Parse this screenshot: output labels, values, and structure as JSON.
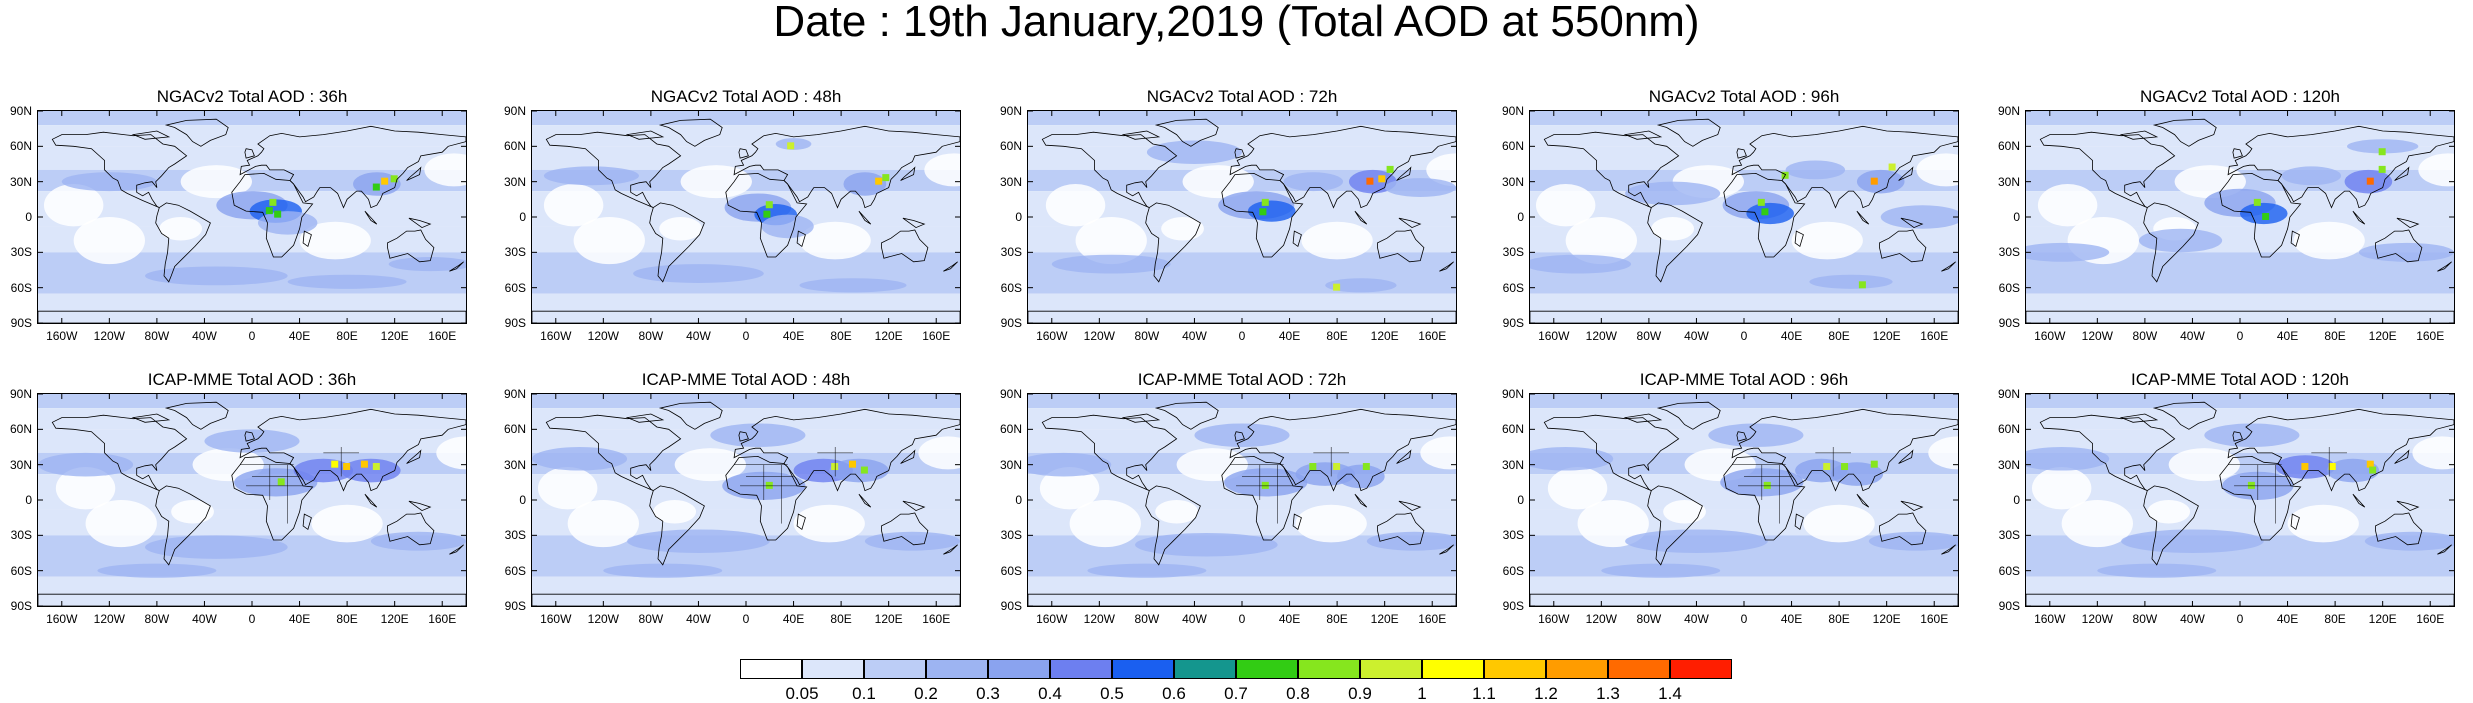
{
  "title": "Date : 19th January,2019 (Total AOD at 550nm)",
  "panels": [
    {
      "title": "NGACv2 Total AOD : 36h",
      "model": "NGACv2",
      "lead_hours": 36
    },
    {
      "title": "NGACv2 Total AOD : 48h",
      "model": "NGACv2",
      "lead_hours": 48
    },
    {
      "title": "NGACv2 Total AOD : 72h",
      "model": "NGACv2",
      "lead_hours": 72
    },
    {
      "title": "NGACv2 Total AOD : 96h",
      "model": "NGACv2",
      "lead_hours": 96
    },
    {
      "title": "NGACv2 Total AOD : 120h",
      "model": "NGACv2",
      "lead_hours": 120
    },
    {
      "title": "ICAP-MME Total AOD : 36h",
      "model": "ICAP-MME",
      "lead_hours": 36
    },
    {
      "title": "ICAP-MME Total AOD : 48h",
      "model": "ICAP-MME",
      "lead_hours": 48
    },
    {
      "title": "ICAP-MME Total AOD : 72h",
      "model": "ICAP-MME",
      "lead_hours": 72
    },
    {
      "title": "ICAP-MME Total AOD : 96h",
      "model": "ICAP-MME",
      "lead_hours": 96
    },
    {
      "title": "ICAP-MME Total AOD : 120h",
      "model": "ICAP-MME",
      "lead_hours": 120
    }
  ],
  "axes": {
    "lat_labels": [
      "90N",
      "60N",
      "30N",
      "0",
      "30S",
      "60S",
      "90S"
    ],
    "lon_labels": [
      "160W",
      "120W",
      "80W",
      "40W",
      "0",
      "40E",
      "80E",
      "120E",
      "160E"
    ],
    "lat_values": [
      90,
      60,
      30,
      0,
      -30,
      -60,
      -90
    ],
    "lon_values": [
      -160,
      -120,
      -80,
      -40,
      0,
      40,
      80,
      120,
      160
    ]
  },
  "colorbar": {
    "labels": [
      "0.05",
      "0.1",
      "0.2",
      "0.3",
      "0.4",
      "0.5",
      "0.6",
      "0.7",
      "0.8",
      "0.9",
      "1",
      "1.1",
      "1.2",
      "1.3",
      "1.4"
    ],
    "colors": [
      "#ffffff",
      "#dce6fa",
      "#bccdf6",
      "#9db4f2",
      "#8aa3ef",
      "#6d7ff0",
      "#1a5ff0",
      "#14968e",
      "#32cc14",
      "#86e61e",
      "#ccf02e",
      "#ffff00",
      "#ffc800",
      "#ff9c00",
      "#ff6a00",
      "#ff1e00"
    ]
  }
}
